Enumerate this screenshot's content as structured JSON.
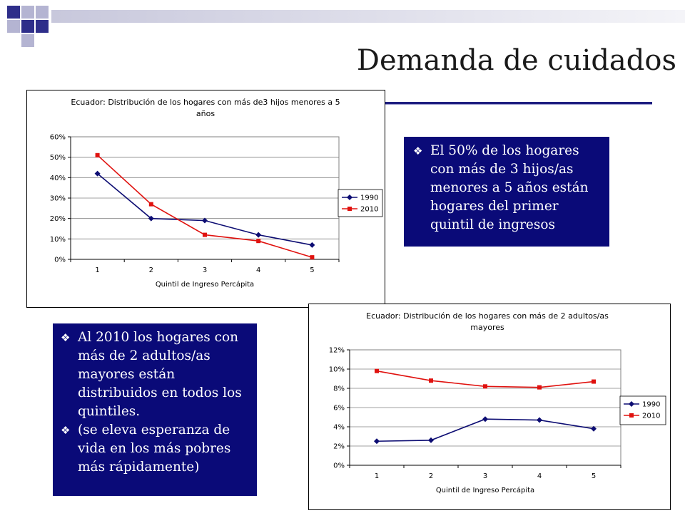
{
  "slide": {
    "title": "Demanda de cuidados",
    "colors": {
      "accent_navy": "#0a0a78",
      "square_dark": "#2e2e8a",
      "square_light": "#b4b4d2"
    }
  },
  "callout_top": {
    "bullet_icon": "diamond-bullet-icon",
    "items": [
      "El 50% de los hogares con más de 3 hijos/as menores a 5 años están hogares del primer quintil de ingresos"
    ]
  },
  "callout_bottom": {
    "bullet_icon": "diamond-bullet-icon",
    "items": [
      "Al 2010 los hogares con más de 2 adultos/as mayores están distribuidos en todos los quintiles.",
      "(se eleva esperanza de vida en los más pobres más rápidamente)"
    ]
  },
  "chart_data": [
    {
      "type": "line",
      "title": "Ecuador: Distribución de los hogares con más de3 hijos menores a 5 años",
      "title_lines": [
        "Ecuador: Distribución de los hogares con más de3 hijos menores a 5",
        "años"
      ],
      "xlabel": "Quintil de Ingreso Percápita",
      "ylabel": "",
      "x": [
        "1",
        "2",
        "3",
        "4",
        "5"
      ],
      "yticks": [
        "0%",
        "10%",
        "20%",
        "30%",
        "40%",
        "50%",
        "60%"
      ],
      "ylim": [
        0,
        60
      ],
      "grid": true,
      "legend_position": "right",
      "series": [
        {
          "name": "1990",
          "color": "#0d0d73",
          "marker": "diamond",
          "values": [
            42,
            20,
            19,
            12,
            7
          ]
        },
        {
          "name": "2010",
          "color": "#e0120f",
          "marker": "square",
          "values": [
            51,
            27,
            12,
            9,
            1
          ]
        }
      ]
    },
    {
      "type": "line",
      "title": "Ecuador: Distribución de los hogares con más de 2 adultos/as mayores",
      "title_lines": [
        "Ecuador: Distribución de los hogares con más de 2 adultos/as",
        "mayores"
      ],
      "xlabel": "Quintil de Ingreso Percápita",
      "ylabel": "",
      "x": [
        "1",
        "2",
        "3",
        "4",
        "5"
      ],
      "yticks": [
        "0%",
        "2%",
        "4%",
        "6%",
        "8%",
        "10%",
        "12%"
      ],
      "ylim": [
        0,
        12
      ],
      "grid": true,
      "legend_position": "right",
      "series": [
        {
          "name": "1990",
          "color": "#0d0d73",
          "marker": "diamond",
          "values": [
            2.5,
            2.6,
            4.8,
            4.7,
            3.8
          ]
        },
        {
          "name": "2010",
          "color": "#e0120f",
          "marker": "square",
          "values": [
            9.8,
            8.8,
            8.2,
            8.1,
            8.7
          ]
        }
      ]
    }
  ]
}
